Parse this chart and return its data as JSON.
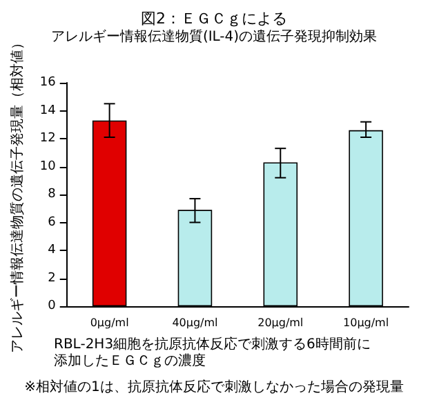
{
  "chart_data": {
    "type": "bar",
    "title": "図2：ＥＧＣｇによる",
    "subtitle": "アレルギー情報伝達物質(IL-4)の遺伝子発現抑制効果",
    "xlabel": "RBL-2H3細胞を抗原抗体反応で刺激する6時間前に添加したＥＧＣｇの濃度",
    "ylabel": "アレルギー情報伝達物質の遺伝子発現量（相対値）",
    "annotations": [
      "※相対値の1は、抗原抗体反応で刺激しなかった場合の発現量"
    ],
    "categories": [
      "0μg/ml",
      "40μg/ml",
      "20μg/ml",
      "10μg/ml"
    ],
    "values": [
      13.3,
      6.9,
      10.3,
      12.6
    ],
    "errors": [
      [
        12.1,
        14.5
      ],
      [
        6.0,
        7.7
      ],
      [
        9.2,
        11.3
      ],
      [
        12.1,
        13.2
      ]
    ],
    "colors": [
      "#e00000",
      "#b8ecec",
      "#b8ecec",
      "#b8ecec"
    ],
    "ylim": [
      0,
      16
    ],
    "yticks": [
      0,
      2,
      4,
      6,
      8,
      10,
      12,
      14,
      16
    ],
    "grid": false
  }
}
